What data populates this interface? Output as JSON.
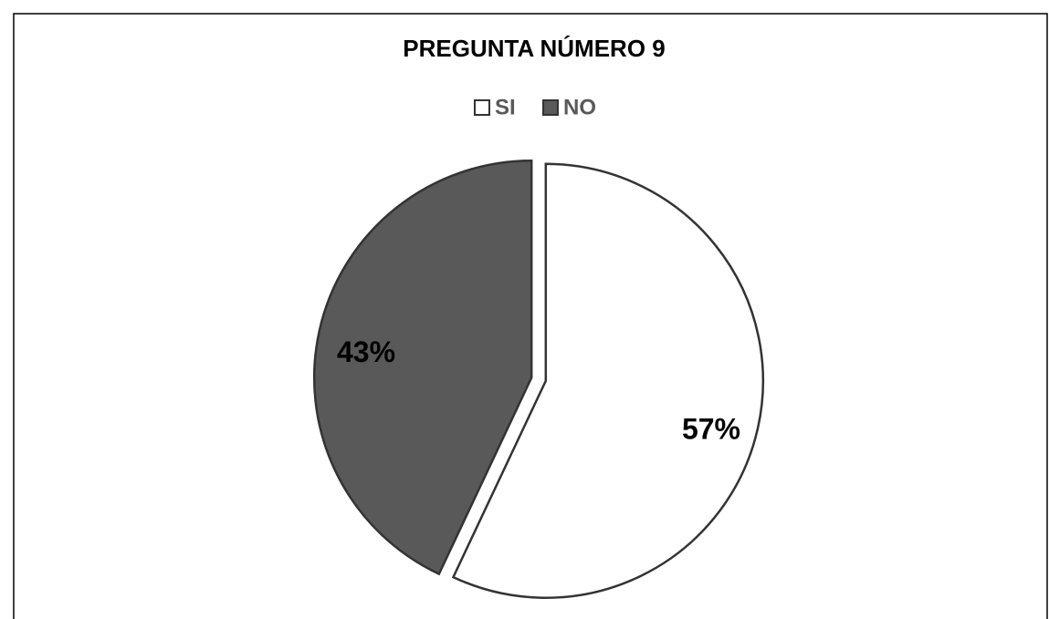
{
  "chart_data": {
    "type": "pie",
    "title": "PREGUNTA NÚMERO 9",
    "categories": [
      "SI",
      "NO"
    ],
    "values": [
      57,
      43
    ],
    "value_labels": [
      "57%",
      "43%"
    ],
    "colors": [
      "#ffffff",
      "#595959"
    ],
    "legend": "top"
  }
}
